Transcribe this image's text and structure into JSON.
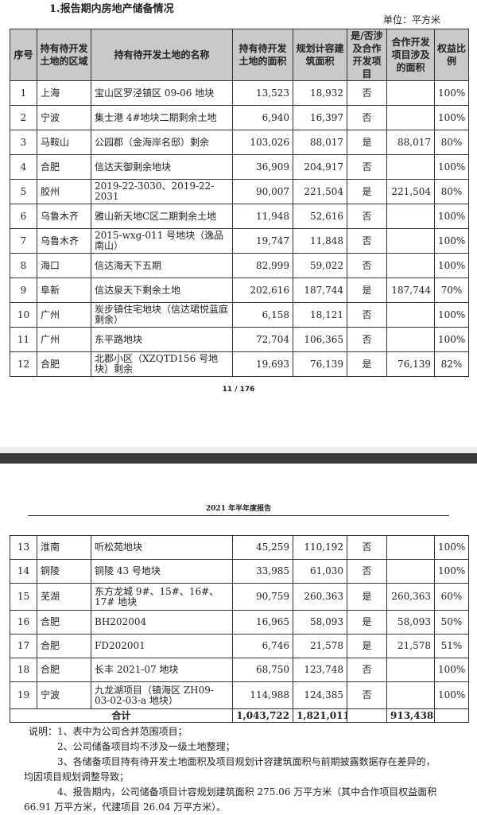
{
  "section_title": "1.报告期内房地产储备情况",
  "unit": "单位：平方米",
  "columns": [
    "序号",
    "持有待开发土地的区域",
    "持有待开发土地的名称",
    "持有待开发土地的面积",
    "规划计容建筑面积",
    "是/否涉及合作开发项目",
    "合作开发项目涉及的面积",
    "权益比例"
  ],
  "rows_page1": [
    {
      "no": "1",
      "region": "上海",
      "name": "宝山区罗泾镇区 09-06 地块",
      "land": "13,523",
      "gfa": "18,932",
      "coop": "否",
      "coop_area": "",
      "equity": "100%"
    },
    {
      "no": "2",
      "region": "宁波",
      "name": "集士港 4#地块二期剩余土地",
      "land": "6,940",
      "gfa": "16,397",
      "coop": "否",
      "coop_area": "",
      "equity": "100%"
    },
    {
      "no": "3",
      "region": "马鞍山",
      "name": "公园郡（金海岸名邸）剩余",
      "land": "103,026",
      "gfa": "88,017",
      "coop": "是",
      "coop_area": "88,017",
      "equity": "80%"
    },
    {
      "no": "4",
      "region": "合肥",
      "name": "信达天御剩余地块",
      "land": "36,909",
      "gfa": "204,917",
      "coop": "否",
      "coop_area": "",
      "equity": "100%"
    },
    {
      "no": "5",
      "region": "胶州",
      "name": "2019-22-3030、2019-22-2031",
      "land": "90,007",
      "gfa": "221,504",
      "coop": "是",
      "coop_area": "221,504",
      "equity": "80%"
    },
    {
      "no": "6",
      "region": "乌鲁木齐",
      "name": "雅山新天地C区二期剩余土地",
      "land": "11,948",
      "gfa": "52,616",
      "coop": "否",
      "coop_area": "",
      "equity": "100%"
    },
    {
      "no": "7",
      "region": "乌鲁木齐",
      "name": "2015-wxg-011 号地块（逸品南山）",
      "land": "19,747",
      "gfa": "11,848",
      "coop": "否",
      "coop_area": "",
      "equity": "100%"
    },
    {
      "no": "8",
      "region": "海口",
      "name": "信达海天下五期",
      "land": "82,999",
      "gfa": "59,022",
      "coop": "否",
      "coop_area": "",
      "equity": "100%"
    },
    {
      "no": "9",
      "region": "阜新",
      "name": "信达泉天下剩余土地",
      "land": "202,616",
      "gfa": "187,744",
      "coop": "是",
      "coop_area": "187,744",
      "equity": "70%"
    },
    {
      "no": "10",
      "region": "广州",
      "name": "炭步镇住宅地块（信达珺悦蓝庭剩余）",
      "land": "6,158",
      "gfa": "18,121",
      "coop": "否",
      "coop_area": "",
      "equity": "100%"
    },
    {
      "no": "11",
      "region": "广州",
      "name": "东平路地块",
      "land": "72,704",
      "gfa": "106,365",
      "coop": "否",
      "coop_area": "",
      "equity": "100%"
    },
    {
      "no": "12",
      "region": "合肥",
      "name": "北郡小区（XZQTD156 号地块）剩余",
      "land": "19,693",
      "gfa": "76,139",
      "coop": "是",
      "coop_area": "76,139",
      "equity": "82%"
    }
  ],
  "page_number": "11 / 176",
  "page2_header": "2021 年半年度报告",
  "rows_page2": [
    {
      "no": "13",
      "region": "淮南",
      "name": "听松苑地块",
      "land": "45,259",
      "gfa": "110,192",
      "coop": "否",
      "coop_area": "",
      "equity": "100%"
    },
    {
      "no": "14",
      "region": "铜陵",
      "name": "铜陵 43 号地块",
      "land": "33,985",
      "gfa": "61,030",
      "coop": "否",
      "coop_area": "",
      "equity": "100%"
    },
    {
      "no": "15",
      "region": "芜湖",
      "name": "东方龙城 9#、15#、16#、17# 地块",
      "land": "90,759",
      "gfa": "260,363",
      "coop": "是",
      "coop_area": "260,363",
      "equity": "60%"
    },
    {
      "no": "16",
      "region": "合肥",
      "name": "BH202004",
      "land": "16,965",
      "gfa": "58,093",
      "coop": "是",
      "coop_area": "58,093",
      "equity": "50%"
    },
    {
      "no": "17",
      "region": "合肥",
      "name": "FD202001",
      "land": "6,746",
      "gfa": "21,578",
      "coop": "是",
      "coop_area": "21,578",
      "equity": "51%"
    },
    {
      "no": "18",
      "region": "合肥",
      "name": "长丰 2021-07 地块",
      "land": "68,750",
      "gfa": "123,748",
      "coop": "否",
      "coop_area": "",
      "equity": "100%"
    },
    {
      "no": "19",
      "region": "宁波",
      "name": "九龙湖项目（镇海区 ZH09-03-02-03-a 地块）",
      "land": "114,988",
      "gfa": "124,385",
      "coop": "否",
      "coop_area": "",
      "equity": "100%"
    }
  ],
  "total": {
    "label": "合计",
    "land": "1,043,722",
    "gfa": "1,821,011",
    "coop_area": "913,438"
  },
  "notes": [
    "说明：1、表中为公司合并范围项目；",
    "2、公司储备项目均不涉及一级土地整理；",
    "3、各储备项目持有待开发土地面积及项目规划计容建筑面积与前期披露数据存在差异的，",
    "均因项目规划调整导致；",
    "4、报告期内，公司储备项目计容规划建筑面积 275.06 万平方米（其中合作项目权益面积",
    "66.91 万平方米，代建项目 26.04 万平方米）。"
  ]
}
